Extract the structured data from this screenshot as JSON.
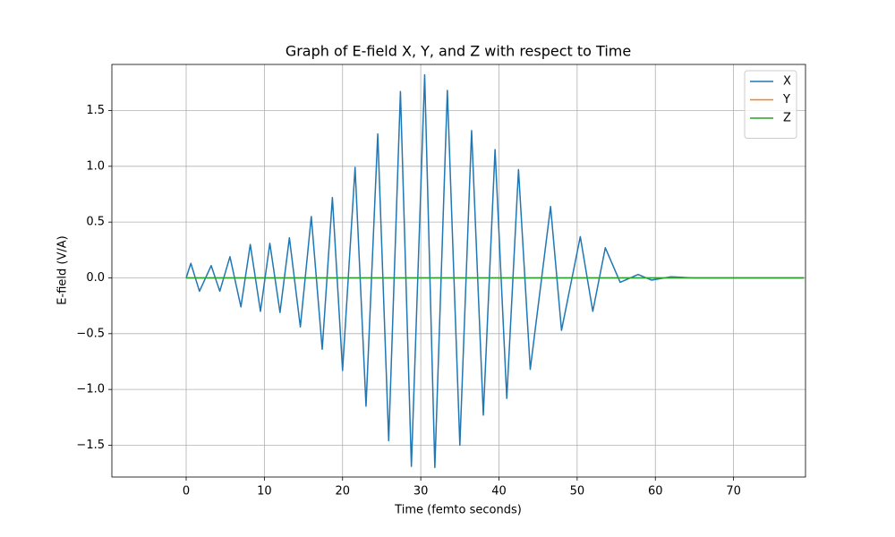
{
  "chart_data": {
    "type": "line",
    "title": "Graph of E-field X, Y, and Z with respect to Time",
    "xlabel": "Time (femto seconds)",
    "ylabel": "E-field (V/A)",
    "x": [
      0,
      0.6,
      1.7,
      3.2,
      4.3,
      5.6,
      7.0,
      8.2,
      9.5,
      10.7,
      12.0,
      13.2,
      14.6,
      16.0,
      17.4,
      18.7,
      20.0,
      21.6,
      23.0,
      24.5,
      25.9,
      27.4,
      28.8,
      30.5,
      31.8,
      33.4,
      35.0,
      36.5,
      38.0,
      39.5,
      41.0,
      42.5,
      44.0,
      46.6,
      48.0,
      50.4,
      52.0,
      53.6,
      55.5,
      57.8,
      59.5,
      62,
      65,
      70,
      75,
      79
    ],
    "series": [
      {
        "name": "X",
        "color": "#1f77b4",
        "values": [
          0,
          0.13,
          -0.12,
          0.11,
          -0.12,
          0.19,
          -0.26,
          0.3,
          -0.3,
          0.31,
          -0.31,
          0.36,
          -0.44,
          0.55,
          -0.64,
          0.72,
          -0.83,
          0.99,
          -1.15,
          1.29,
          -1.46,
          1.67,
          -1.69,
          1.82,
          -1.7,
          1.68,
          -1.5,
          1.32,
          -1.23,
          1.15,
          -1.08,
          0.97,
          -0.82,
          0.64,
          -0.47,
          0.37,
          -0.3,
          0.27,
          -0.04,
          0.03,
          -0.02,
          0.01,
          0,
          0,
          0,
          0
        ]
      },
      {
        "name": "Y",
        "color": "#ff7f0e",
        "values": [
          0,
          0,
          0,
          0,
          0,
          0,
          0,
          0,
          0,
          0,
          0,
          0,
          0,
          0,
          0,
          0,
          0,
          0,
          0,
          0,
          0,
          0,
          0,
          0,
          0,
          0,
          0,
          0,
          0,
          0,
          0,
          0,
          0,
          0,
          0,
          0,
          0,
          0,
          0,
          0,
          0,
          0,
          0,
          0,
          0,
          0
        ]
      },
      {
        "name": "Z",
        "color": "#2ca02c",
        "values": [
          0,
          0,
          0,
          0,
          0,
          0,
          0,
          0,
          0,
          0,
          0,
          0,
          0,
          0,
          0,
          0,
          0,
          0,
          0,
          0,
          0,
          0,
          0,
          0,
          0,
          0,
          0,
          0,
          0,
          0,
          0,
          0,
          0,
          0,
          0,
          0,
          0,
          0,
          0,
          0,
          0,
          0,
          0,
          0,
          0,
          0
        ]
      }
    ],
    "xlim": [
      -9.5,
      79.2
    ],
    "ylim": [
      -1.785,
      1.913
    ],
    "xticks": [
      0,
      10,
      20,
      30,
      40,
      50,
      60,
      70
    ],
    "yticks": [
      {
        "value": -1.5,
        "label": "−1.5"
      },
      {
        "value": -1.0,
        "label": "−1.0"
      },
      {
        "value": -0.5,
        "label": "−0.5"
      },
      {
        "value": 0,
        "label": "0.0"
      },
      {
        "value": 0.5,
        "label": "0.5"
      },
      {
        "value": 1.0,
        "label": "1.0"
      },
      {
        "value": 1.5,
        "label": "1.5"
      }
    ],
    "grid": true,
    "legend": "upper right"
  }
}
